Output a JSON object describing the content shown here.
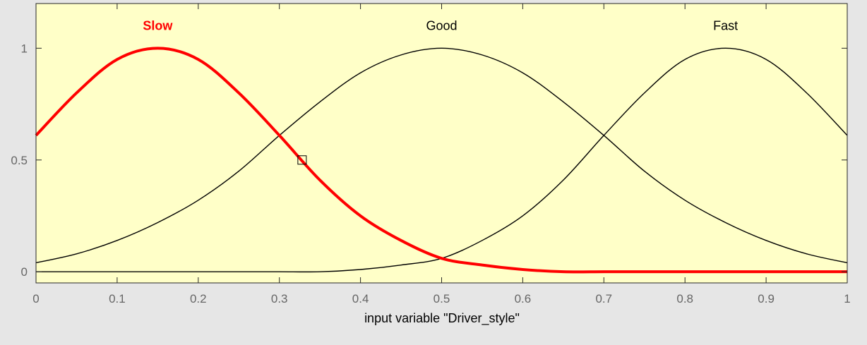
{
  "chart_data": {
    "type": "line",
    "title": "",
    "xlabel": "input variable \"Driver_style\"",
    "ylabel": "",
    "xlim": [
      0,
      1
    ],
    "ylim": [
      -0.05,
      1.2
    ],
    "x_ticks": [
      0,
      0.1,
      0.2,
      0.3,
      0.4,
      0.5,
      0.6,
      0.7,
      0.8,
      0.9,
      1
    ],
    "x_tick_labels": [
      "0",
      "0.1",
      "0.2",
      "0.3",
      "0.4",
      "0.5",
      "0.6",
      "0.7",
      "0.8",
      "0.9",
      "1"
    ],
    "y_ticks": [
      0,
      0.5,
      1
    ],
    "y_tick_labels": [
      "0",
      "0.5",
      "1"
    ],
    "grid": false,
    "background_color": "#ffffc8",
    "figure_color": "#e6e6e6",
    "series": [
      {
        "name": "Slow",
        "label_color": "#ff0000",
        "line_color": "#ff0000",
        "highlighted": true,
        "x": [
          0,
          0.05,
          0.1,
          0.15,
          0.2,
          0.25,
          0.3,
          0.35,
          0.4,
          0.45,
          0.5,
          0.55,
          0.6,
          0.65,
          0.7,
          0.75,
          0.8,
          0.85,
          0.9,
          0.95,
          1
        ],
        "values": [
          0.61,
          0.8,
          0.95,
          1.0,
          0.95,
          0.8,
          0.61,
          0.41,
          0.25,
          0.14,
          0.06,
          0.03,
          0.01,
          0.0,
          0.0,
          0.0,
          0.0,
          0.0,
          0.0,
          0.0,
          0.0
        ]
      },
      {
        "name": "Good",
        "label_color": "#000000",
        "line_color": "#000000",
        "highlighted": false,
        "x": [
          0,
          0.05,
          0.1,
          0.15,
          0.2,
          0.25,
          0.3,
          0.35,
          0.4,
          0.45,
          0.5,
          0.55,
          0.6,
          0.65,
          0.7,
          0.75,
          0.8,
          0.85,
          0.9,
          0.95,
          1
        ],
        "values": [
          0.04,
          0.08,
          0.14,
          0.22,
          0.32,
          0.45,
          0.61,
          0.76,
          0.89,
          0.97,
          1.0,
          0.97,
          0.89,
          0.76,
          0.61,
          0.45,
          0.32,
          0.22,
          0.14,
          0.08,
          0.04
        ]
      },
      {
        "name": "Fast",
        "label_color": "#000000",
        "line_color": "#000000",
        "highlighted": false,
        "x": [
          0,
          0.05,
          0.1,
          0.15,
          0.2,
          0.25,
          0.3,
          0.35,
          0.4,
          0.45,
          0.5,
          0.55,
          0.6,
          0.65,
          0.7,
          0.75,
          0.8,
          0.85,
          0.9,
          0.95,
          1
        ],
        "values": [
          0.0,
          0.0,
          0.0,
          0.0,
          0.0,
          0.0,
          0.0,
          0.0,
          0.01,
          0.03,
          0.06,
          0.14,
          0.25,
          0.41,
          0.61,
          0.8,
          0.95,
          1.0,
          0.95,
          0.8,
          0.61
        ]
      }
    ],
    "series_label_y": 1.1,
    "marker": {
      "shape": "square",
      "x": 0.328,
      "y": 0.5
    }
  }
}
